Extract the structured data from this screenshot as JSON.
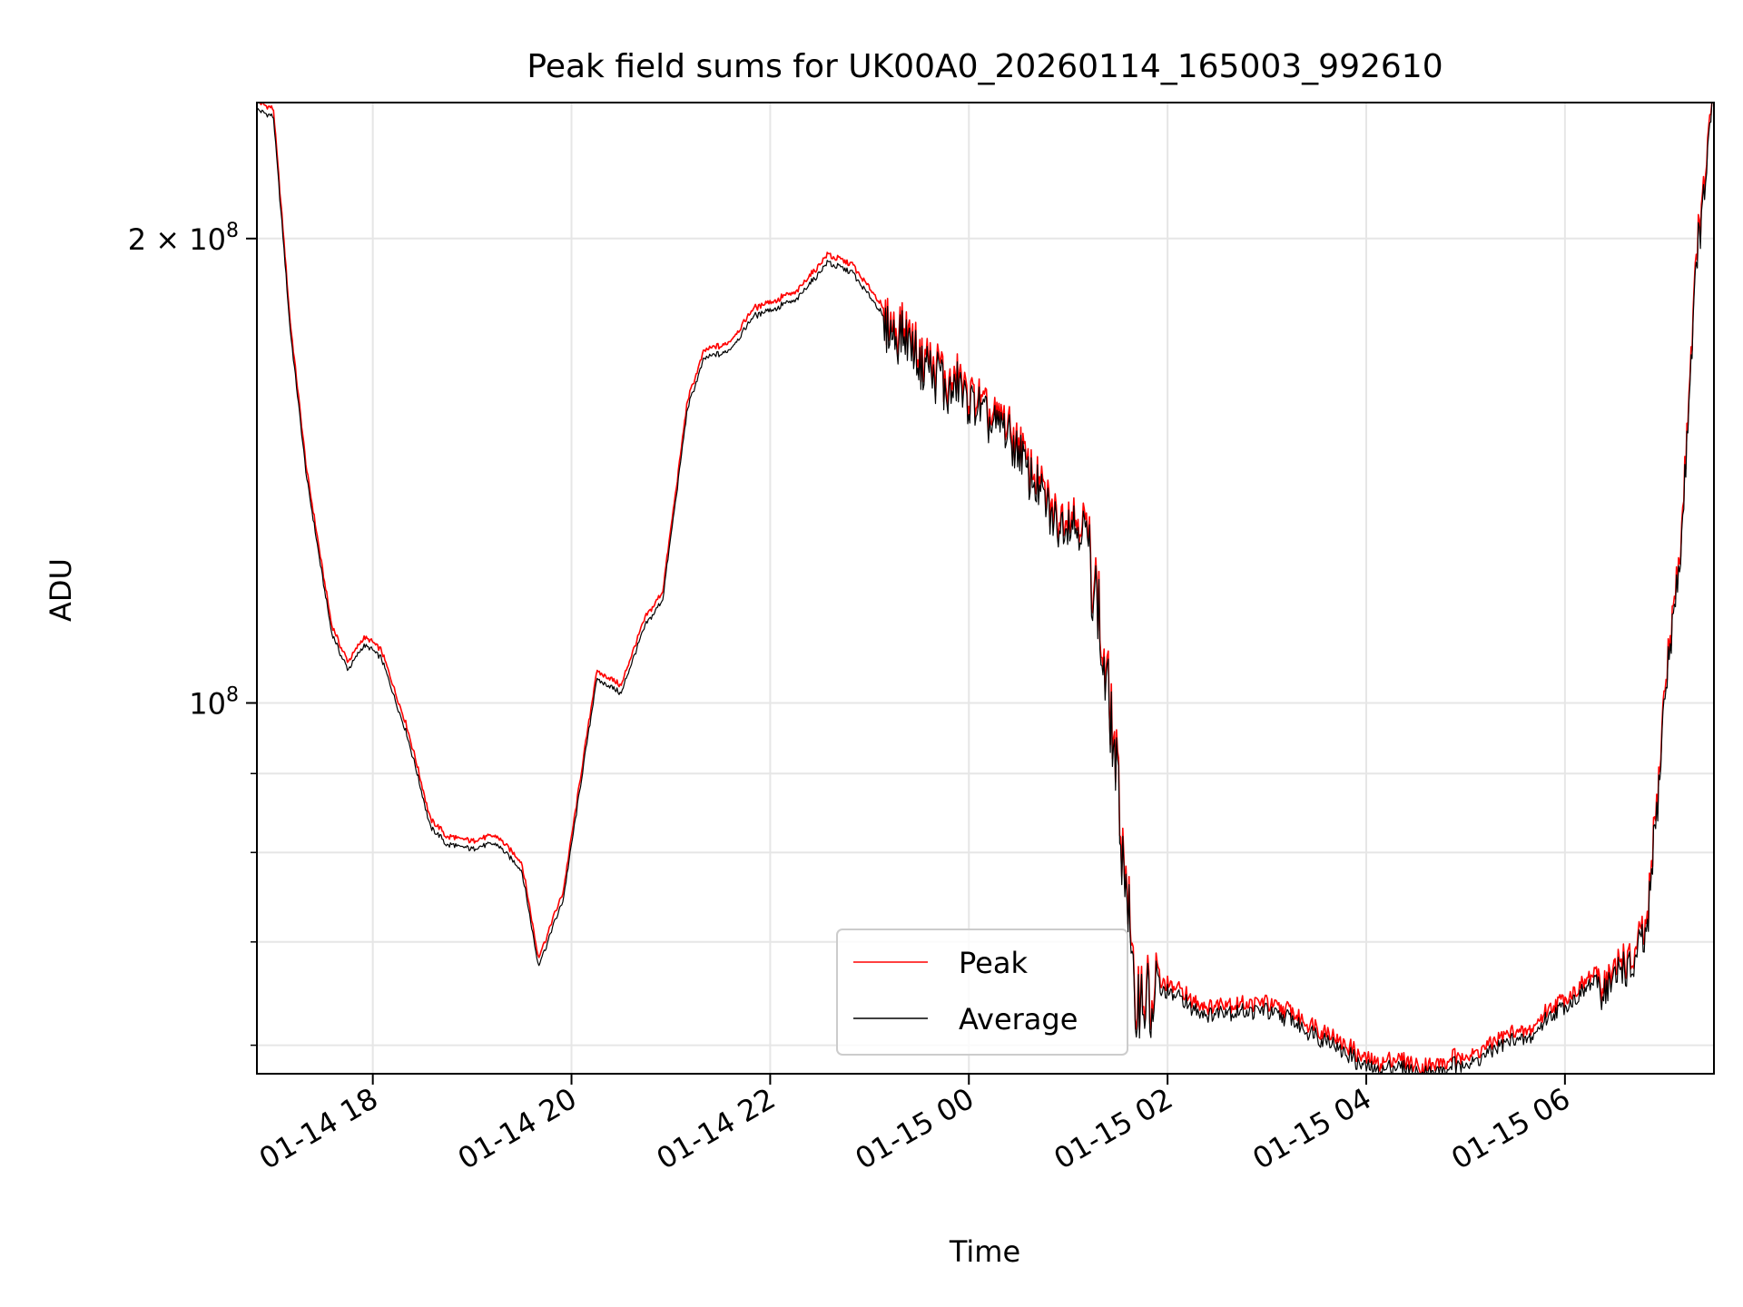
{
  "chart_data": {
    "type": "line",
    "title": "Peak field sums for UK00A0_20260114_165003_992610",
    "xlabel": "Time",
    "ylabel": "ADU",
    "yscale": "log",
    "ylim": [
      57500000,
      245000000
    ],
    "xlim": [
      "2026-01-14 16:50",
      "2026-01-15 07:30"
    ],
    "x_ticks": [
      {
        "value": "2026-01-14 18:00",
        "label": "01-14 18"
      },
      {
        "value": "2026-01-14 20:00",
        "label": "01-14 20"
      },
      {
        "value": "2026-01-14 22:00",
        "label": "01-14 22"
      },
      {
        "value": "2026-01-15 00:00",
        "label": "01-15 00"
      },
      {
        "value": "2026-01-15 02:00",
        "label": "01-15 02"
      },
      {
        "value": "2026-01-15 04:00",
        "label": "01-15 04"
      },
      {
        "value": "2026-01-15 06:00",
        "label": "01-15 06"
      }
    ],
    "y_major_ticks": [
      {
        "value": 100000000,
        "label_base": "10",
        "label_exp": "8"
      },
      {
        "value": 200000000,
        "label_base": "2 × 10",
        "label_exp": "8"
      }
    ],
    "y_minor_ticks": [
      60000000,
      70000000,
      80000000,
      90000000
    ],
    "grid": true,
    "legend": {
      "placement": "lower-center",
      "entries": [
        "Peak",
        "Average"
      ]
    },
    "series": [
      {
        "name": "Peak",
        "color": "#ff0000",
        "offset_ratio": 1.012,
        "x": [
          "2026-01-14 16:50",
          "2026-01-14 17:00",
          "2026-01-14 17:10",
          "2026-01-14 17:20",
          "2026-01-14 17:35",
          "2026-01-14 17:45",
          "2026-01-14 17:55",
          "2026-01-14 18:05",
          "2026-01-14 18:20",
          "2026-01-14 18:35",
          "2026-01-14 18:45",
          "2026-01-14 19:00",
          "2026-01-14 19:15",
          "2026-01-14 19:30",
          "2026-01-14 19:40",
          "2026-01-14 19:55",
          "2026-01-14 20:15",
          "2026-01-14 20:30",
          "2026-01-14 20:45",
          "2026-01-14 20:55",
          "2026-01-14 21:10",
          "2026-01-14 21:20",
          "2026-01-14 21:35",
          "2026-01-14 21:50",
          "2026-01-14 22:00",
          "2026-01-14 22:15",
          "2026-01-14 22:35",
          "2026-01-14 22:50",
          "2026-01-14 23:10",
          "2026-01-14 23:30",
          "2026-01-14 23:50",
          "2026-01-15 00:10",
          "2026-01-15 00:30",
          "2026-01-15 00:50",
          "2026-01-15 01:10",
          "2026-01-15 01:20",
          "2026-01-15 01:30",
          "2026-01-15 01:40",
          "2026-01-15 02:00",
          "2026-01-15 02:20",
          "2026-01-15 02:45",
          "2026-01-15 03:05",
          "2026-01-15 03:30",
          "2026-01-15 04:00",
          "2026-01-15 04:40",
          "2026-01-15 05:10",
          "2026-01-15 05:40",
          "2026-01-15 06:05",
          "2026-01-15 06:25",
          "2026-01-15 06:40",
          "2026-01-15 06:50",
          "2026-01-15 07:00",
          "2026-01-15 07:10",
          "2026-01-15 07:20",
          "2026-01-15 07:30"
        ],
        "y": [
          243000000,
          240000000,
          175000000,
          140000000,
          112000000,
          106000000,
          110000000,
          108000000,
          97000000,
          84000000,
          82000000,
          81500000,
          82000000,
          79000000,
          68500000,
          75000000,
          104000000,
          102000000,
          113000000,
          117000000,
          155000000,
          167000000,
          169000000,
          178000000,
          180000000,
          182000000,
          193000000,
          190000000,
          177000000,
          165000000,
          160000000,
          155000000,
          145000000,
          132000000,
          132000000,
          110000000,
          90000000,
          65000000,
          66000000,
          64000000,
          64000000,
          64000000,
          62000000,
          59000000,
          58000000,
          60000000,
          62000000,
          65500000,
          67000000,
          68000000,
          72000000,
          100000000,
          125000000,
          195000000,
          245000000
        ]
      },
      {
        "name": "Average",
        "color": "#000000",
        "offset_ratio": 1.0,
        "x": [
          "2026-01-14 16:50",
          "2026-01-14 17:00",
          "2026-01-14 17:10",
          "2026-01-14 17:20",
          "2026-01-14 17:35",
          "2026-01-14 17:45",
          "2026-01-14 17:55",
          "2026-01-14 18:05",
          "2026-01-14 18:20",
          "2026-01-14 18:35",
          "2026-01-14 18:45",
          "2026-01-14 19:00",
          "2026-01-14 19:15",
          "2026-01-14 19:30",
          "2026-01-14 19:40",
          "2026-01-14 19:55",
          "2026-01-14 20:15",
          "2026-01-14 20:30",
          "2026-01-14 20:45",
          "2026-01-14 20:55",
          "2026-01-14 21:10",
          "2026-01-14 21:20",
          "2026-01-14 21:35",
          "2026-01-14 21:50",
          "2026-01-14 22:00",
          "2026-01-14 22:15",
          "2026-01-14 22:35",
          "2026-01-14 22:50",
          "2026-01-14 23:10",
          "2026-01-14 23:30",
          "2026-01-14 23:50",
          "2026-01-15 00:10",
          "2026-01-15 00:30",
          "2026-01-15 00:50",
          "2026-01-15 01:10",
          "2026-01-15 01:20",
          "2026-01-15 01:30",
          "2026-01-15 01:40",
          "2026-01-15 02:00",
          "2026-01-15 02:20",
          "2026-01-15 02:45",
          "2026-01-15 03:05",
          "2026-01-15 03:30",
          "2026-01-15 04:00",
          "2026-01-15 04:40",
          "2026-01-15 05:10",
          "2026-01-15 05:40",
          "2026-01-15 06:05",
          "2026-01-15 06:25",
          "2026-01-15 06:40",
          "2026-01-15 06:50",
          "2026-01-15 07:00",
          "2026-01-15 07:10",
          "2026-01-15 07:20",
          "2026-01-15 07:30"
        ],
        "y": [
          243000000,
          240000000,
          175000000,
          140000000,
          111000000,
          105000000,
          109000000,
          107000000,
          96000000,
          83000000,
          81000000,
          80500000,
          81000000,
          78000000,
          67500000,
          74500000,
          103500000,
          101500000,
          112500000,
          116500000,
          155000000,
          167000000,
          169000000,
          178000000,
          180000000,
          182000000,
          193000000,
          190000000,
          177000000,
          165000000,
          160000000,
          155000000,
          145000000,
          132000000,
          132000000,
          110000000,
          89000000,
          64000000,
          65000000,
          63000000,
          63000000,
          63000000,
          61000000,
          58000000,
          57500000,
          59000000,
          61000000,
          64500000,
          66000000,
          67000000,
          71000000,
          100000000,
          125000000,
          195000000,
          245000000
        ]
      }
    ]
  }
}
